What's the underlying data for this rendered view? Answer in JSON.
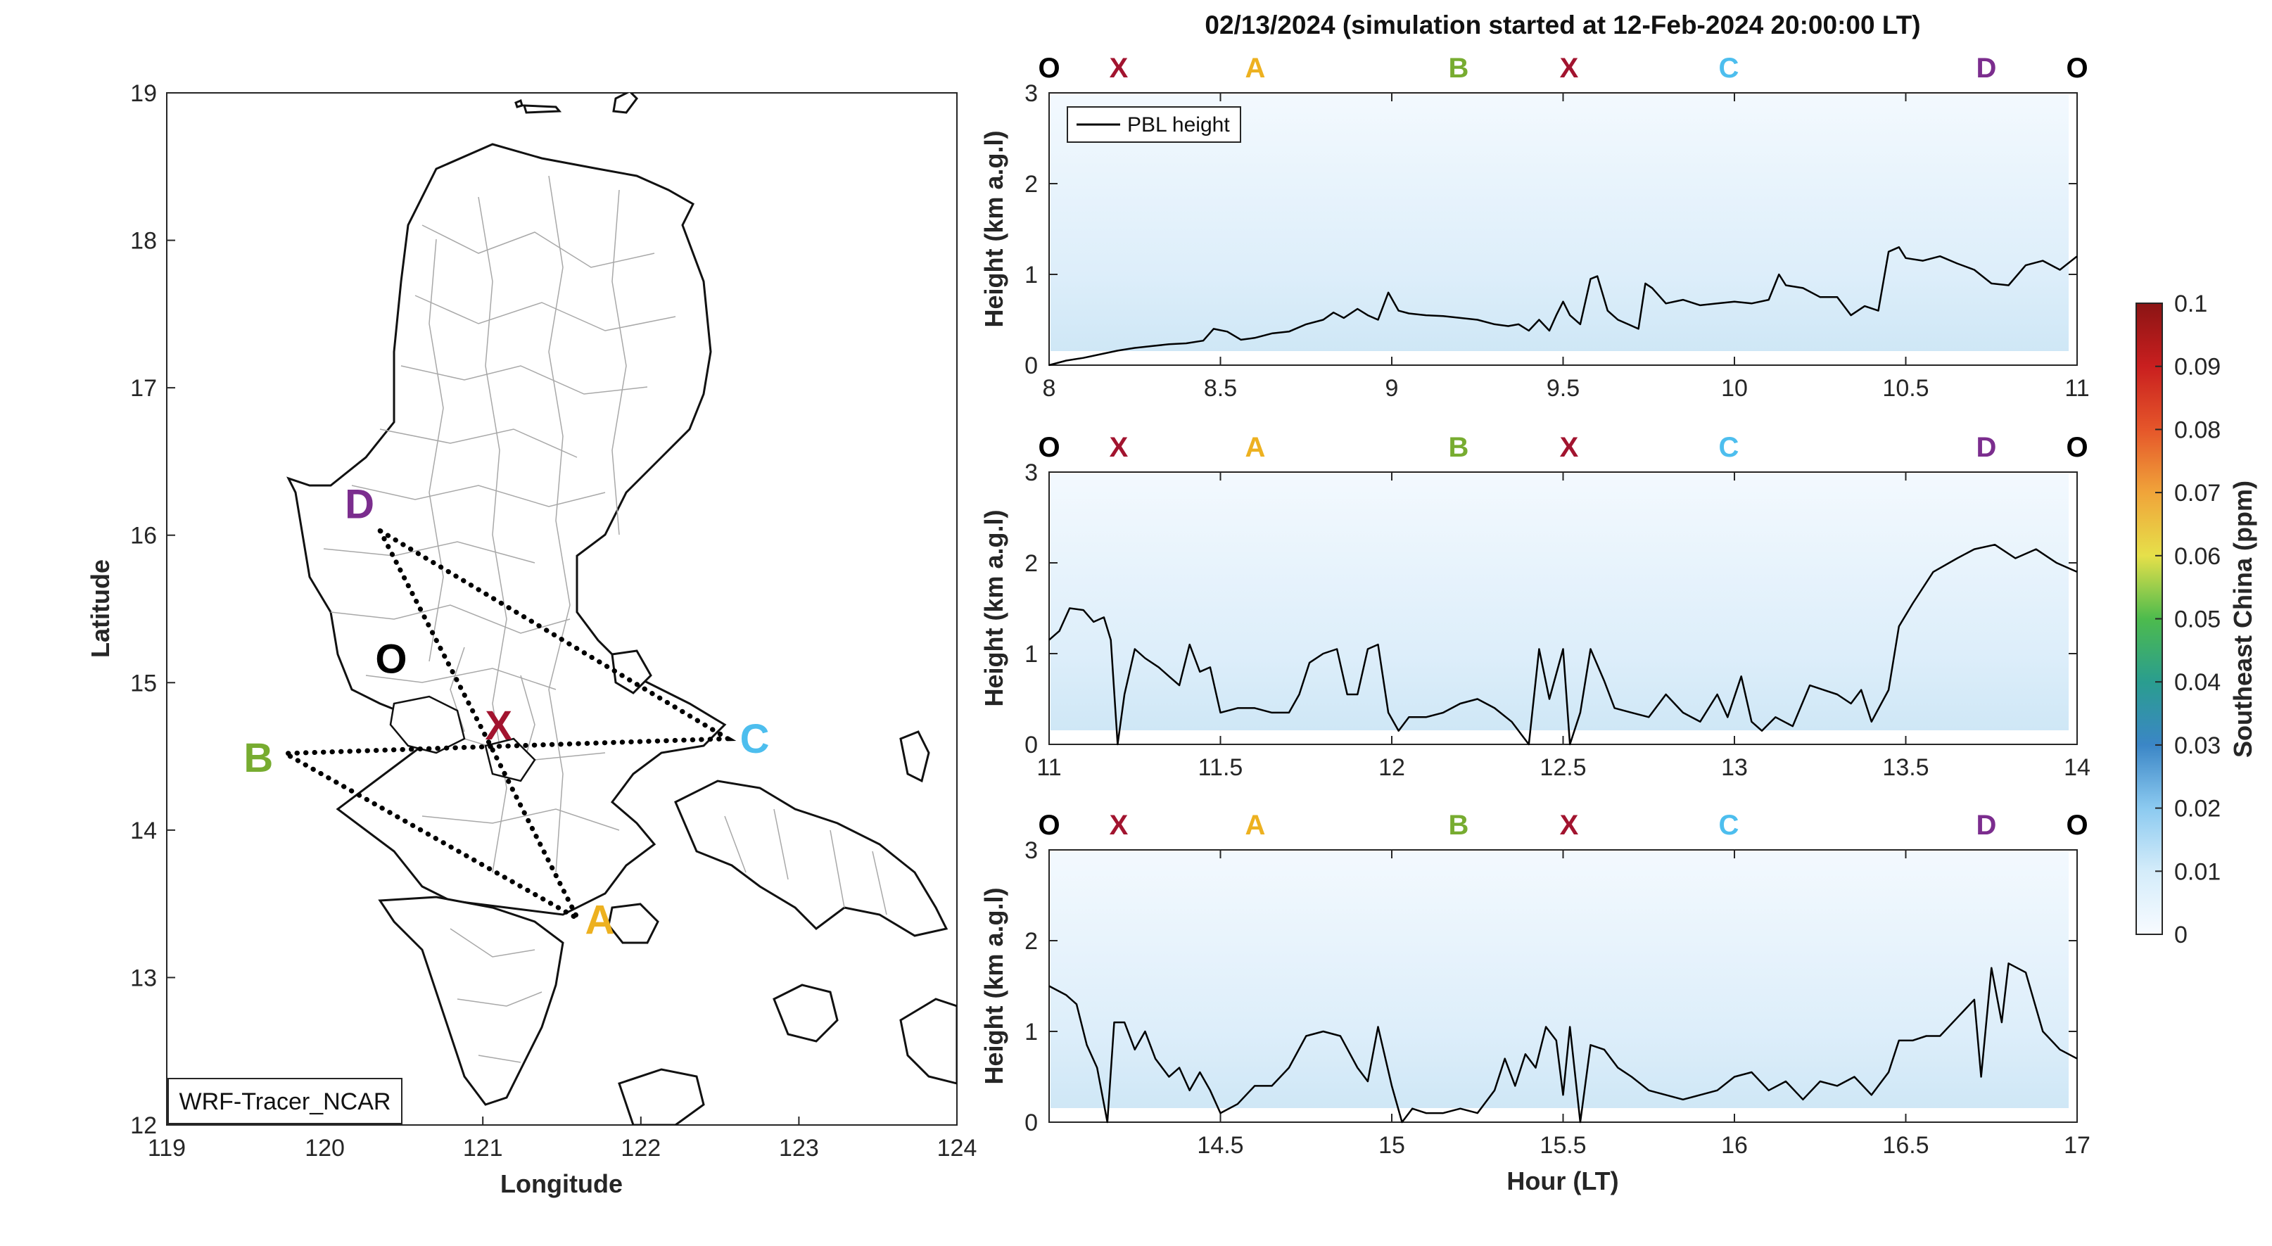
{
  "title": "02/13/2024 (simulation started at 12-Feb-2024 20:00:00 LT)",
  "map": {
    "xlabel": "Longitude",
    "ylabel": "Latitude",
    "xticks": [
      119,
      120,
      121,
      122,
      123,
      124
    ],
    "yticks": [
      12,
      13,
      14,
      15,
      16,
      17,
      18,
      19
    ],
    "xlim": [
      119,
      124
    ],
    "ylim": [
      12,
      19
    ],
    "model_label": "WRF-Tracer_NCAR",
    "points": [
      {
        "name": "D",
        "lon": 120.22,
        "lat": 16.22,
        "color": "#7B2D8E"
      },
      {
        "name": "O",
        "lon": 120.42,
        "lat": 15.17,
        "color": "#000000"
      },
      {
        "name": "X",
        "lon": 121.1,
        "lat": 14.72,
        "color": "#A2142F"
      },
      {
        "name": "B",
        "lon": 119.58,
        "lat": 14.5,
        "color": "#77AC30"
      },
      {
        "name": "C",
        "lon": 122.72,
        "lat": 14.63,
        "color": "#4DBEEE"
      },
      {
        "name": "A",
        "lon": 121.74,
        "lat": 13.4,
        "color": "#EDB120"
      }
    ],
    "route": [
      [
        120.35,
        16.03
      ],
      [
        121.05,
        14.57
      ],
      [
        121.6,
        13.4
      ],
      [
        119.75,
        14.52
      ],
      [
        122.55,
        14.62
      ],
      [
        120.35,
        16.03
      ]
    ]
  },
  "chart_data": {
    "type": "line",
    "colorbar": {
      "label": "Southeast China (ppm)",
      "ticks": [
        "0",
        "0.01",
        "0.02",
        "0.03",
        "0.04",
        "0.05",
        "0.06",
        "0.07",
        "0.08",
        "0.09",
        "0.1"
      ],
      "range": [
        0,
        0.1
      ]
    },
    "ylabel": "Height (km a.g.l)",
    "xlabel": "Hour (LT)",
    "ylim": [
      0,
      3
    ],
    "yticks": [
      0,
      1,
      2,
      3
    ],
    "legend": "PBL height",
    "point_labels": [
      {
        "name": "O",
        "color": "#000000"
      },
      {
        "name": "X",
        "color": "#A2142F"
      },
      {
        "name": "A",
        "color": "#EDB120"
      },
      {
        "name": "B",
        "color": "#77AC30"
      },
      {
        "name": "X",
        "color": "#A2142F"
      },
      {
        "name": "C",
        "color": "#4DBEEE"
      },
      {
        "name": "D",
        "color": "#7B2D8E"
      },
      {
        "name": "O",
        "color": "#000000"
      }
    ],
    "panels": [
      {
        "xlim": [
          8,
          11
        ],
        "xticks": [
          8,
          8.5,
          9,
          9.5,
          10,
          10.5,
          11
        ],
        "pbl": [
          [
            8.0,
            0.0
          ],
          [
            8.05,
            0.05
          ],
          [
            8.1,
            0.08
          ],
          [
            8.15,
            0.12
          ],
          [
            8.2,
            0.16
          ],
          [
            8.25,
            0.19
          ],
          [
            8.3,
            0.21
          ],
          [
            8.35,
            0.23
          ],
          [
            8.4,
            0.24
          ],
          [
            8.45,
            0.27
          ],
          [
            8.48,
            0.4
          ],
          [
            8.52,
            0.37
          ],
          [
            8.56,
            0.28
          ],
          [
            8.6,
            0.3
          ],
          [
            8.65,
            0.35
          ],
          [
            8.7,
            0.37
          ],
          [
            8.75,
            0.45
          ],
          [
            8.8,
            0.5
          ],
          [
            8.83,
            0.58
          ],
          [
            8.86,
            0.52
          ],
          [
            8.9,
            0.62
          ],
          [
            8.93,
            0.55
          ],
          [
            8.96,
            0.5
          ],
          [
            8.99,
            0.8
          ],
          [
            9.02,
            0.6
          ],
          [
            9.05,
            0.57
          ],
          [
            9.1,
            0.55
          ],
          [
            9.15,
            0.54
          ],
          [
            9.2,
            0.52
          ],
          [
            9.25,
            0.5
          ],
          [
            9.3,
            0.45
          ],
          [
            9.34,
            0.43
          ],
          [
            9.37,
            0.45
          ],
          [
            9.4,
            0.38
          ],
          [
            9.43,
            0.5
          ],
          [
            9.46,
            0.38
          ],
          [
            9.48,
            0.55
          ],
          [
            9.5,
            0.7
          ],
          [
            9.52,
            0.55
          ],
          [
            9.55,
            0.45
          ],
          [
            9.58,
            0.95
          ],
          [
            9.6,
            0.98
          ],
          [
            9.63,
            0.6
          ],
          [
            9.66,
            0.5
          ],
          [
            9.69,
            0.45
          ],
          [
            9.72,
            0.4
          ],
          [
            9.74,
            0.9
          ],
          [
            9.76,
            0.85
          ],
          [
            9.8,
            0.68
          ],
          [
            9.85,
            0.72
          ],
          [
            9.9,
            0.66
          ],
          [
            9.95,
            0.68
          ],
          [
            10.0,
            0.7
          ],
          [
            10.05,
            0.68
          ],
          [
            10.1,
            0.72
          ],
          [
            10.13,
            1.0
          ],
          [
            10.15,
            0.88
          ],
          [
            10.2,
            0.85
          ],
          [
            10.25,
            0.75
          ],
          [
            10.3,
            0.75
          ],
          [
            10.34,
            0.55
          ],
          [
            10.38,
            0.65
          ],
          [
            10.42,
            0.6
          ],
          [
            10.45,
            1.25
          ],
          [
            10.48,
            1.3
          ],
          [
            10.5,
            1.18
          ],
          [
            10.55,
            1.15
          ],
          [
            10.6,
            1.2
          ],
          [
            10.65,
            1.12
          ],
          [
            10.7,
            1.05
          ],
          [
            10.75,
            0.9
          ],
          [
            10.8,
            0.88
          ],
          [
            10.85,
            1.1
          ],
          [
            10.9,
            1.15
          ],
          [
            10.95,
            1.05
          ],
          [
            11.0,
            1.2
          ]
        ]
      },
      {
        "xlim": [
          11,
          14
        ],
        "xticks": [
          11,
          11.5,
          12,
          12.5,
          13,
          13.5,
          14
        ],
        "pbl": [
          [
            11.0,
            1.15
          ],
          [
            11.03,
            1.25
          ],
          [
            11.06,
            1.5
          ],
          [
            11.1,
            1.48
          ],
          [
            11.13,
            1.35
          ],
          [
            11.16,
            1.4
          ],
          [
            11.18,
            1.15
          ],
          [
            11.2,
            0.0
          ],
          [
            11.22,
            0.55
          ],
          [
            11.25,
            1.05
          ],
          [
            11.28,
            0.95
          ],
          [
            11.32,
            0.85
          ],
          [
            11.35,
            0.75
          ],
          [
            11.38,
            0.65
          ],
          [
            11.41,
            1.1
          ],
          [
            11.44,
            0.8
          ],
          [
            11.47,
            0.85
          ],
          [
            11.5,
            0.35
          ],
          [
            11.55,
            0.4
          ],
          [
            11.6,
            0.4
          ],
          [
            11.65,
            0.35
          ],
          [
            11.7,
            0.35
          ],
          [
            11.73,
            0.55
          ],
          [
            11.76,
            0.9
          ],
          [
            11.8,
            1.0
          ],
          [
            11.84,
            1.05
          ],
          [
            11.87,
            0.55
          ],
          [
            11.9,
            0.55
          ],
          [
            11.93,
            1.05
          ],
          [
            11.96,
            1.1
          ],
          [
            11.99,
            0.35
          ],
          [
            12.02,
            0.15
          ],
          [
            12.05,
            0.3
          ],
          [
            12.1,
            0.3
          ],
          [
            12.15,
            0.35
          ],
          [
            12.2,
            0.45
          ],
          [
            12.25,
            0.5
          ],
          [
            12.3,
            0.4
          ],
          [
            12.35,
            0.25
          ],
          [
            12.4,
            0.0
          ],
          [
            12.43,
            1.05
          ],
          [
            12.46,
            0.5
          ],
          [
            12.5,
            1.05
          ],
          [
            12.52,
            0.0
          ],
          [
            12.55,
            0.35
          ],
          [
            12.58,
            1.05
          ],
          [
            12.62,
            0.7
          ],
          [
            12.65,
            0.4
          ],
          [
            12.7,
            0.35
          ],
          [
            12.75,
            0.3
          ],
          [
            12.8,
            0.55
          ],
          [
            12.85,
            0.35
          ],
          [
            12.9,
            0.25
          ],
          [
            12.95,
            0.55
          ],
          [
            12.98,
            0.3
          ],
          [
            13.02,
            0.75
          ],
          [
            13.05,
            0.25
          ],
          [
            13.08,
            0.15
          ],
          [
            13.12,
            0.3
          ],
          [
            13.17,
            0.2
          ],
          [
            13.22,
            0.65
          ],
          [
            13.26,
            0.6
          ],
          [
            13.3,
            0.55
          ],
          [
            13.34,
            0.45
          ],
          [
            13.37,
            0.6
          ],
          [
            13.4,
            0.25
          ],
          [
            13.45,
            0.6
          ],
          [
            13.48,
            1.3
          ],
          [
            13.52,
            1.55
          ],
          [
            13.58,
            1.9
          ],
          [
            13.65,
            2.05
          ],
          [
            13.7,
            2.15
          ],
          [
            13.76,
            2.2
          ],
          [
            13.82,
            2.05
          ],
          [
            13.88,
            2.15
          ],
          [
            13.94,
            2.0
          ],
          [
            14.0,
            1.9
          ]
        ]
      },
      {
        "xlim": [
          14,
          17
        ],
        "xticks": [
          14.5,
          15,
          15.5,
          16,
          16.5,
          17
        ],
        "pbl": [
          [
            14.0,
            1.5
          ],
          [
            14.05,
            1.4
          ],
          [
            14.08,
            1.3
          ],
          [
            14.11,
            0.85
          ],
          [
            14.14,
            0.6
          ],
          [
            14.17,
            0.0
          ],
          [
            14.19,
            1.1
          ],
          [
            14.22,
            1.1
          ],
          [
            14.25,
            0.8
          ],
          [
            14.28,
            1.0
          ],
          [
            14.31,
            0.7
          ],
          [
            14.35,
            0.5
          ],
          [
            14.38,
            0.6
          ],
          [
            14.41,
            0.35
          ],
          [
            14.44,
            0.55
          ],
          [
            14.47,
            0.35
          ],
          [
            14.5,
            0.1
          ],
          [
            14.55,
            0.2
          ],
          [
            14.6,
            0.4
          ],
          [
            14.65,
            0.4
          ],
          [
            14.7,
            0.6
          ],
          [
            14.75,
            0.95
          ],
          [
            14.8,
            1.0
          ],
          [
            14.85,
            0.95
          ],
          [
            14.9,
            0.6
          ],
          [
            14.93,
            0.45
          ],
          [
            14.96,
            1.05
          ],
          [
            15.0,
            0.4
          ],
          [
            15.03,
            0.0
          ],
          [
            15.06,
            0.15
          ],
          [
            15.1,
            0.1
          ],
          [
            15.15,
            0.1
          ],
          [
            15.2,
            0.15
          ],
          [
            15.25,
            0.1
          ],
          [
            15.3,
            0.35
          ],
          [
            15.33,
            0.7
          ],
          [
            15.36,
            0.4
          ],
          [
            15.39,
            0.75
          ],
          [
            15.42,
            0.6
          ],
          [
            15.45,
            1.05
          ],
          [
            15.48,
            0.9
          ],
          [
            15.5,
            0.3
          ],
          [
            15.52,
            1.05
          ],
          [
            15.55,
            0.0
          ],
          [
            15.58,
            0.85
          ],
          [
            15.62,
            0.8
          ],
          [
            15.66,
            0.6
          ],
          [
            15.7,
            0.5
          ],
          [
            15.75,
            0.35
          ],
          [
            15.8,
            0.3
          ],
          [
            15.85,
            0.25
          ],
          [
            15.9,
            0.3
          ],
          [
            15.95,
            0.35
          ],
          [
            16.0,
            0.5
          ],
          [
            16.05,
            0.55
          ],
          [
            16.1,
            0.35
          ],
          [
            16.15,
            0.45
          ],
          [
            16.2,
            0.25
          ],
          [
            16.25,
            0.45
          ],
          [
            16.3,
            0.4
          ],
          [
            16.35,
            0.5
          ],
          [
            16.4,
            0.3
          ],
          [
            16.45,
            0.55
          ],
          [
            16.48,
            0.9
          ],
          [
            16.52,
            0.9
          ],
          [
            16.56,
            0.95
          ],
          [
            16.6,
            0.95
          ],
          [
            16.65,
            1.15
          ],
          [
            16.7,
            1.35
          ],
          [
            16.72,
            0.5
          ],
          [
            16.75,
            1.7
          ],
          [
            16.78,
            1.1
          ],
          [
            16.8,
            1.75
          ],
          [
            16.85,
            1.65
          ],
          [
            16.9,
            1.0
          ],
          [
            16.95,
            0.8
          ],
          [
            17.0,
            0.7
          ]
        ]
      }
    ]
  }
}
